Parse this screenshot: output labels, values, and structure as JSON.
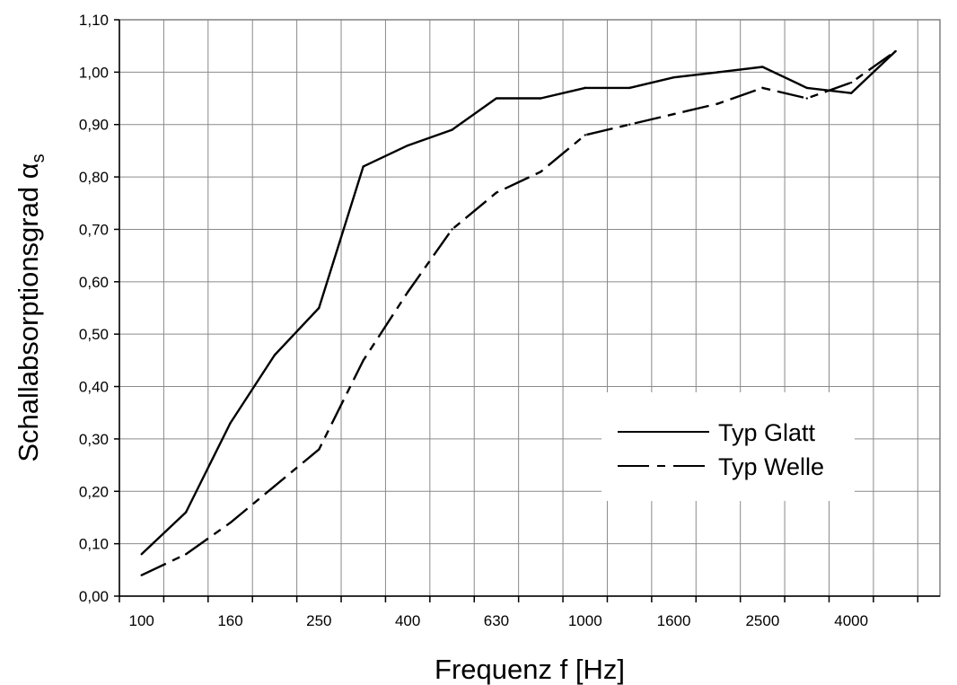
{
  "chart_data": {
    "type": "line",
    "xlabel": "Frequenz f [Hz]",
    "ylabel": "Schallabsorptionsgrad α",
    "ylabel_subscript": "s",
    "ylim": [
      0,
      1.1
    ],
    "y_ticks": [
      "0,00",
      "0,10",
      "0,20",
      "0,30",
      "0,40",
      "0,50",
      "0,60",
      "0,70",
      "0,80",
      "0,90",
      "1,00",
      "1,10"
    ],
    "x": [
      100,
      125,
      160,
      200,
      250,
      315,
      400,
      500,
      630,
      800,
      1000,
      1250,
      1600,
      2000,
      2500,
      3150,
      4000,
      5000
    ],
    "x_tick_labels": [
      "100",
      "160",
      "250",
      "400",
      "630",
      "1000",
      "1600",
      "2500",
      "4000"
    ],
    "grid": true,
    "legend_position": "bottom-right",
    "series": [
      {
        "name": "Typ Glatt",
        "line_style": "solid",
        "color": "#000000",
        "values": [
          0.08,
          0.16,
          0.33,
          0.46,
          0.55,
          0.82,
          0.86,
          0.89,
          0.95,
          0.95,
          0.97,
          0.97,
          0.99,
          1.0,
          1.01,
          0.97,
          0.96,
          1.04
        ]
      },
      {
        "name": "Typ Welle",
        "line_style": "dash-dot",
        "color": "#000000",
        "values": [
          0.04,
          0.08,
          0.14,
          0.21,
          0.28,
          0.45,
          0.58,
          0.7,
          0.77,
          0.81,
          0.88,
          0.9,
          0.92,
          0.94,
          0.97,
          0.95,
          0.98,
          1.04
        ]
      }
    ]
  }
}
